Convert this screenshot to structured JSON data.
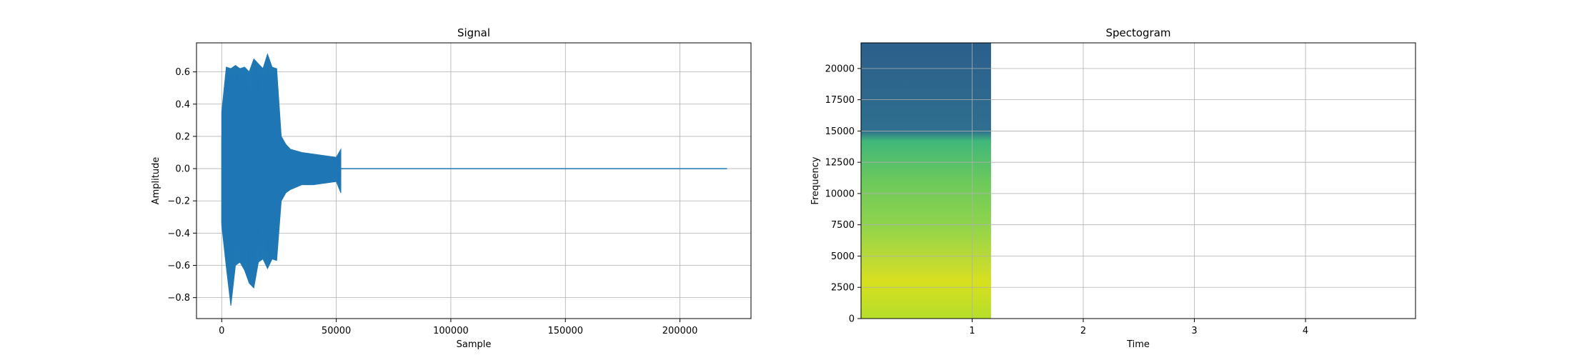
{
  "chart_data": [
    {
      "type": "line",
      "title": "Signal",
      "xlabel": "Sample",
      "ylabel": "Amplitude",
      "xlim": [
        -11000,
        231000
      ],
      "ylim": [
        -0.93,
        0.78
      ],
      "xticks": [
        0,
        50000,
        100000,
        150000,
        200000
      ],
      "xtick_labels": [
        "0",
        "50000",
        "100000",
        "150000",
        "200000"
      ],
      "yticks": [
        0.6,
        0.4,
        0.2,
        0.0,
        -0.2,
        -0.4,
        -0.6,
        -0.8
      ],
      "ytick_labels": [
        "0.6",
        "0.4",
        "0.2",
        "0.0",
        "−0.2",
        "−0.4",
        "−0.6",
        "−0.8"
      ],
      "grid": true,
      "series": [
        {
          "color": "#1f77b4",
          "x": [
            0,
            2000,
            4000,
            6000,
            8000,
            10000,
            12000,
            14000,
            16000,
            18000,
            20000,
            22000,
            24000,
            26000,
            28000,
            30000,
            35000,
            40000,
            45000,
            50000,
            52000,
            52001,
            220500
          ],
          "ymax": [
            0.35,
            0.63,
            0.62,
            0.64,
            0.62,
            0.63,
            0.6,
            0.68,
            0.65,
            0.62,
            0.71,
            0.63,
            0.62,
            0.2,
            0.15,
            0.12,
            0.1,
            0.09,
            0.08,
            0.07,
            0.12,
            0,
            0
          ],
          "ymin": [
            -0.35,
            -0.61,
            -0.85,
            -0.6,
            -0.58,
            -0.63,
            -0.71,
            -0.74,
            -0.58,
            -0.56,
            -0.62,
            -0.56,
            -0.57,
            -0.2,
            -0.15,
            -0.13,
            -0.1,
            -0.1,
            -0.09,
            -0.08,
            -0.15,
            0,
            0
          ]
        }
      ]
    },
    {
      "type": "heatmap",
      "title": "Spectogram",
      "xlabel": "Time",
      "ylabel": "Frequency",
      "xlim": [
        0,
        4.99
      ],
      "ylim": [
        0,
        22050
      ],
      "xticks": [
        1,
        2,
        3,
        4
      ],
      "xtick_labels": [
        "1",
        "2",
        "3",
        "4"
      ],
      "yticks": [
        0,
        2500,
        5000,
        7500,
        10000,
        12500,
        15000,
        17500,
        20000
      ],
      "ytick_labels": [
        "0",
        "2500",
        "5000",
        "7500",
        "10000",
        "12500",
        "15000",
        "17500",
        "20000"
      ],
      "grid": true,
      "data_extent_time": 1.17,
      "colormap": "viridis",
      "color_stops": [
        {
          "frequency": 22050,
          "color": "#2c5f8c"
        },
        {
          "frequency": 15000,
          "color": "#2f6f8e"
        },
        {
          "frequency": 14200,
          "color": "#3fb77a"
        },
        {
          "frequency": 11000,
          "color": "#6cc95c"
        },
        {
          "frequency": 7500,
          "color": "#8fd44c"
        },
        {
          "frequency": 4000,
          "color": "#c8dc2e"
        },
        {
          "frequency": 3000,
          "color": "#d8e01e"
        },
        {
          "frequency": 0,
          "color": "#b5de2b"
        }
      ]
    }
  ]
}
